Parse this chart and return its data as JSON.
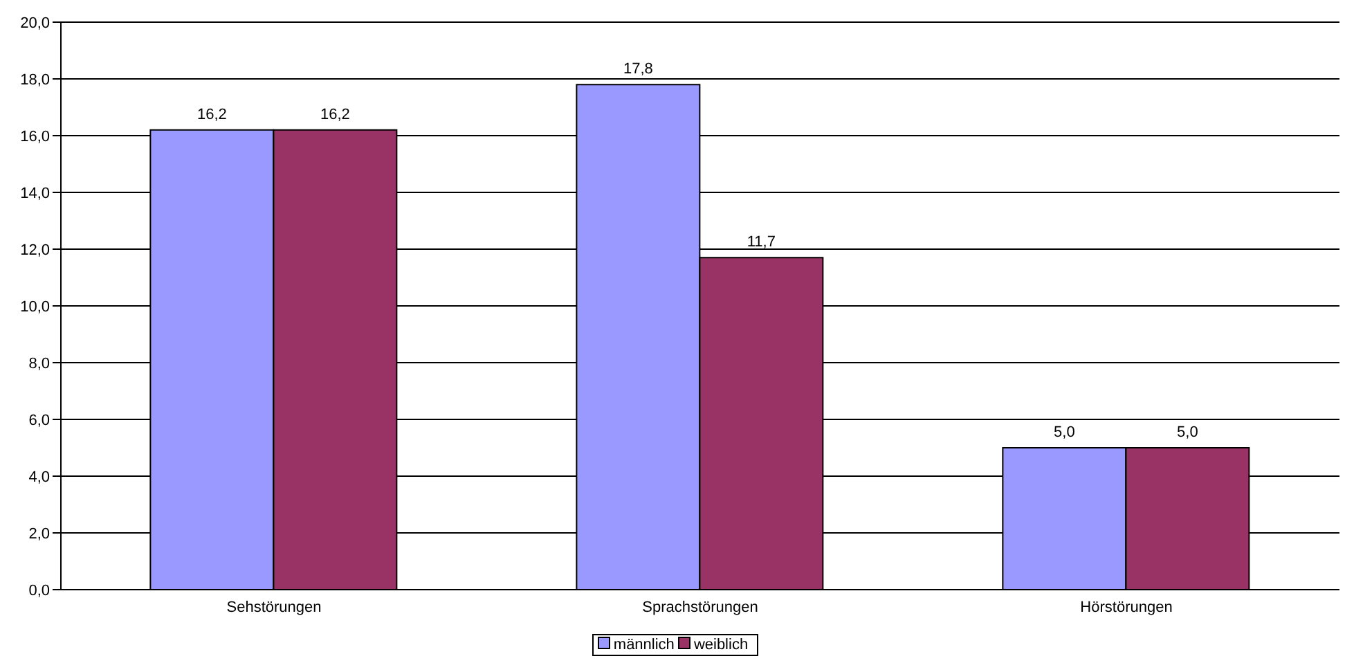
{
  "chart_data": {
    "type": "bar",
    "categories": [
      "Sehstörungen",
      "Sprachstörungen",
      "Hörstörungen"
    ],
    "series": [
      {
        "name": "männlich",
        "color": "#9999ff",
        "values": [
          16.2,
          17.8,
          5.0
        ],
        "value_labels": [
          "16,2",
          "17,8",
          "5,0"
        ]
      },
      {
        "name": "weiblich",
        "color": "#993366",
        "values": [
          16.2,
          11.7,
          5.0
        ],
        "value_labels": [
          "16,2",
          "11,7",
          "5,0"
        ]
      }
    ],
    "ylim": [
      0,
      20
    ],
    "yticks": [
      {
        "value": 0,
        "label": "0,0"
      },
      {
        "value": 2,
        "label": "2,0"
      },
      {
        "value": 4,
        "label": "4,0"
      },
      {
        "value": 6,
        "label": "6,0"
      },
      {
        "value": 8,
        "label": "8,0"
      },
      {
        "value": 10,
        "label": "10,0"
      },
      {
        "value": 12,
        "label": "12,0"
      },
      {
        "value": 14,
        "label": "14,0"
      },
      {
        "value": 16,
        "label": "16,0"
      },
      {
        "value": 18,
        "label": "18,0"
      },
      {
        "value": 20,
        "label": "20,0"
      }
    ],
    "grid": "y",
    "legend": "bottom"
  }
}
